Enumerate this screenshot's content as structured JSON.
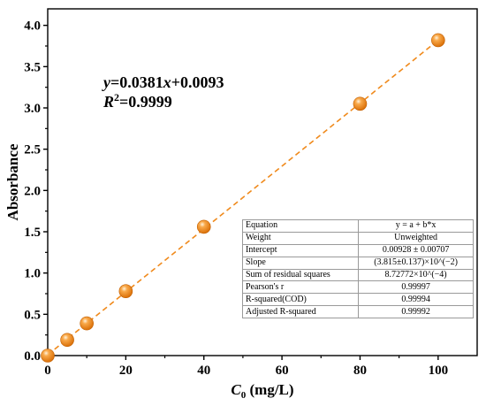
{
  "chart_data": {
    "type": "scatter",
    "xlabel_main": "C",
    "xlabel_sub": "0",
    "xlabel_unit": " (mg/L)",
    "ylabel": "Absorbance",
    "xlim": [
      0,
      110
    ],
    "ylim": [
      0,
      4.2
    ],
    "x_ticks": [
      0,
      20,
      40,
      60,
      80,
      100
    ],
    "y_ticks": [
      0.0,
      0.5,
      1.0,
      1.5,
      2.0,
      2.5,
      3.0,
      3.5,
      4.0
    ],
    "points": [
      {
        "x": 0,
        "y": 0.0
      },
      {
        "x": 5,
        "y": 0.19
      },
      {
        "x": 10,
        "y": 0.39
      },
      {
        "x": 20,
        "y": 0.78
      },
      {
        "x": 40,
        "y": 1.56
      },
      {
        "x": 80,
        "y": 3.05
      },
      {
        "x": 100,
        "y": 3.82
      }
    ],
    "fit": {
      "slope": 0.0381,
      "intercept": 0.0093,
      "x_range": [
        0,
        100
      ]
    },
    "marker_color": "#f08a1c",
    "fit_line_color": "#f08a1c",
    "equation": {
      "y_var": "y",
      "eq_mid": "=0.0381",
      "x_var": "x",
      "eq_end": "+0.0093",
      "r_var": "R",
      "r_sup": "2",
      "r_val": "=0.9999"
    }
  },
  "stats_table": [
    {
      "label": "Equation",
      "value": "y = a + b*x"
    },
    {
      "label": "Weight",
      "value": "Unweighted"
    },
    {
      "label": "Intercept",
      "value": "0.00928 ± 0.00707"
    },
    {
      "label": "Slope",
      "value": "(3.815±0.137)×10^(−2)"
    },
    {
      "label": "Sum of residual squares",
      "value": "8.72772×10^(−4)"
    },
    {
      "label": "Pearson's r",
      "value": "0.99997"
    },
    {
      "label": "R-squared(COD)",
      "value": "0.99994"
    },
    {
      "label": "Adjusted R-squared",
      "value": "0.99992"
    }
  ]
}
